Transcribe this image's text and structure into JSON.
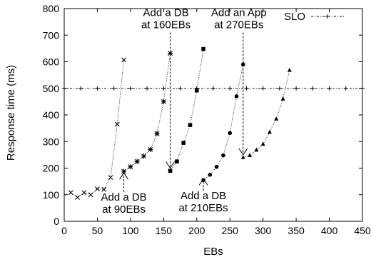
{
  "chart_data": {
    "type": "scatter",
    "xlabel": "EBs",
    "ylabel": "Response time (ms)",
    "xlim": [
      0,
      450
    ],
    "ylim": [
      0,
      800
    ],
    "xticks": [
      0,
      50,
      100,
      150,
      200,
      250,
      300,
      350,
      400,
      450
    ],
    "yticks": [
      0,
      100,
      200,
      300,
      400,
      500,
      600,
      700,
      800
    ],
    "grid": false,
    "legend_position": "top-right",
    "series": [
      {
        "marker": "x",
        "points": [
          [
            10,
            108
          ],
          [
            20,
            90
          ],
          [
            30,
            108
          ],
          [
            40,
            100
          ],
          [
            50,
            122
          ],
          [
            60,
            120
          ],
          [
            70,
            165
          ],
          [
            80,
            365
          ],
          [
            90,
            607
          ]
        ]
      },
      {
        "marker": "asterisk",
        "points": [
          [
            90,
            188
          ],
          [
            100,
            205
          ],
          [
            110,
            225
          ],
          [
            120,
            245
          ],
          [
            130,
            270
          ],
          [
            140,
            330
          ],
          [
            150,
            450
          ],
          [
            160,
            632
          ]
        ]
      },
      {
        "marker": "square",
        "points": [
          [
            160,
            190
          ],
          [
            170,
            225
          ],
          [
            180,
            295
          ],
          [
            190,
            362
          ],
          [
            200,
            492
          ],
          [
            210,
            648
          ]
        ]
      },
      {
        "marker": "circle",
        "points": [
          [
            210,
            155
          ],
          [
            220,
            175
          ],
          [
            230,
            205
          ],
          [
            240,
            248
          ],
          [
            250,
            332
          ],
          [
            260,
            470
          ],
          [
            270,
            590
          ]
        ]
      },
      {
        "marker": "triangle",
        "points": [
          [
            270,
            240
          ],
          [
            280,
            248
          ],
          [
            290,
            268
          ],
          [
            300,
            290
          ],
          [
            310,
            335
          ],
          [
            320,
            385
          ],
          [
            330,
            460
          ],
          [
            340,
            568
          ]
        ]
      },
      {
        "name": "SLO",
        "marker": "plus",
        "style": "dash-dot",
        "points": [
          [
            0,
            500
          ],
          [
            25,
            500
          ],
          [
            50,
            500
          ],
          [
            75,
            500
          ],
          [
            100,
            500
          ],
          [
            125,
            500
          ],
          [
            150,
            500
          ],
          [
            175,
            500
          ],
          [
            200,
            500
          ],
          [
            225,
            500
          ],
          [
            250,
            500
          ],
          [
            275,
            500
          ],
          [
            300,
            500
          ],
          [
            325,
            500
          ],
          [
            350,
            500
          ],
          [
            375,
            500
          ],
          [
            400,
            500
          ],
          [
            425,
            500
          ],
          [
            450,
            500
          ]
        ]
      }
    ],
    "annotations": [
      {
        "lines": [
          "Add a DB",
          "at 90EBs"
        ],
        "x": 90,
        "from_y": 110,
        "to_y": 182,
        "anchor": "below"
      },
      {
        "lines": [
          "Add a DB",
          "at 160EBs"
        ],
        "x": 160,
        "from_y": 710,
        "to_y": 200,
        "anchor": "above"
      },
      {
        "lines": [
          "Add a DB",
          "at 210EBs"
        ],
        "x": 210,
        "from_y": 115,
        "to_y": 160,
        "anchor": "below"
      },
      {
        "lines": [
          "Add an App",
          "at 270EBs"
        ],
        "x": 270,
        "from_y": 710,
        "to_y": 250,
        "anchor": "above"
      }
    ],
    "legend": [
      {
        "label": "SLO",
        "marker": "plus"
      }
    ]
  }
}
